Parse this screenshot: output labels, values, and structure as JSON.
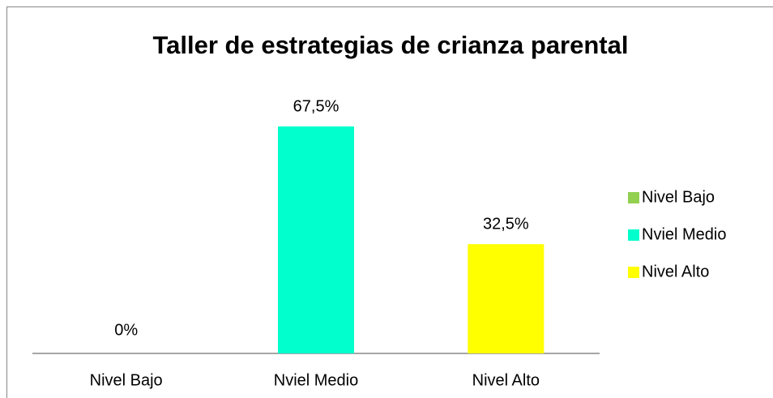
{
  "chart_data": {
    "type": "bar",
    "title": "Taller de estrategias de crianza parental",
    "categories": [
      "Nivel Bajo",
      "Nviel Medio",
      "Nivel Alto"
    ],
    "values": [
      0,
      67.5,
      32.5
    ],
    "value_labels": [
      "0%",
      "67,5%",
      "32,5%"
    ],
    "colors": [
      "#92d050",
      "#00ffcc",
      "#ffff00"
    ],
    "legend": "right"
  }
}
